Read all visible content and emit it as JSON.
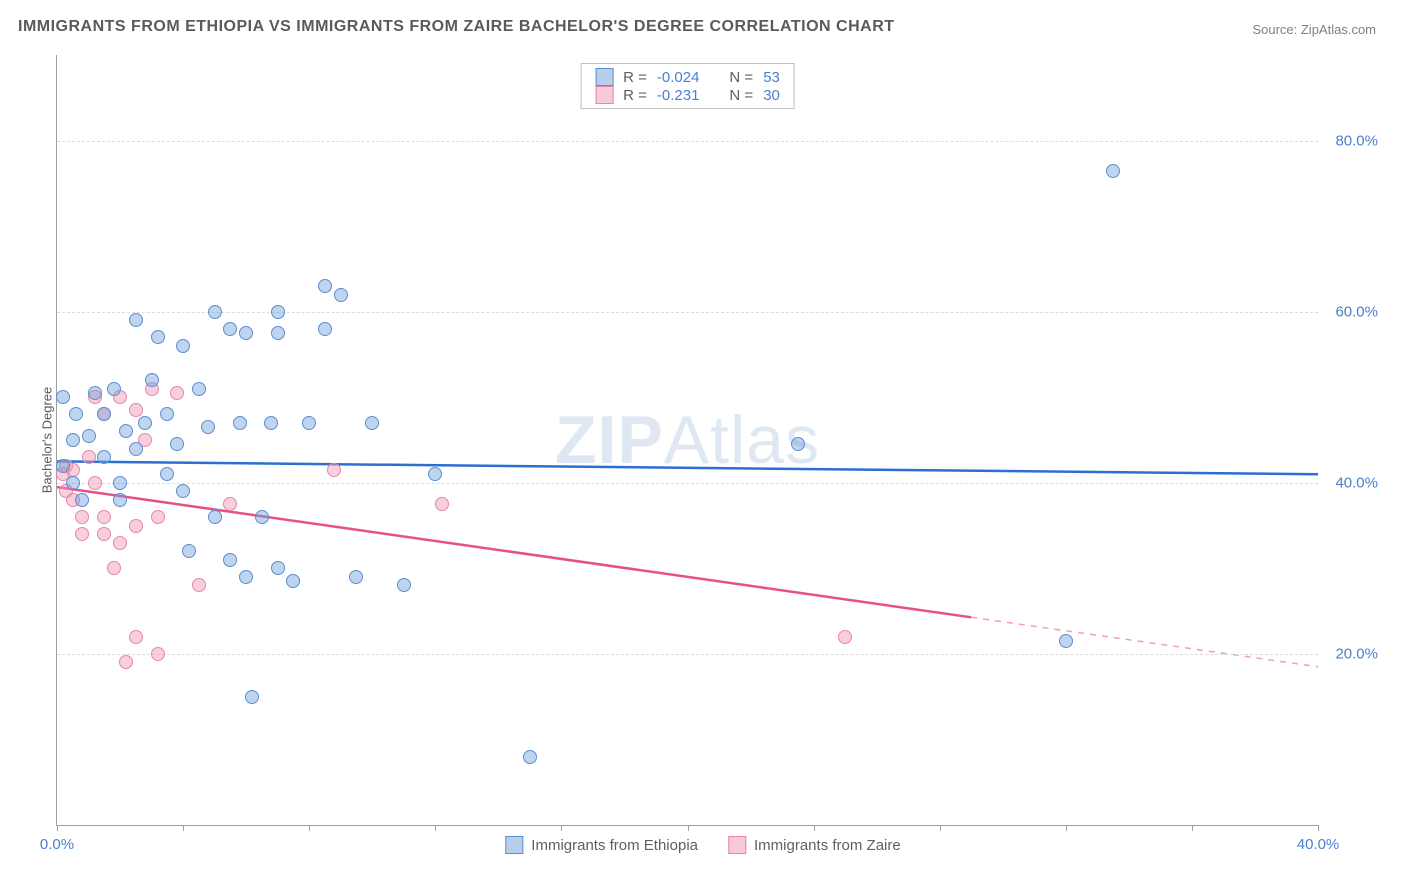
{
  "title": "IMMIGRANTS FROM ETHIOPIA VS IMMIGRANTS FROM ZAIRE BACHELOR'S DEGREE CORRELATION CHART",
  "source": "Source: ZipAtlas.com",
  "watermark_bold": "ZIP",
  "watermark_rest": "Atlas",
  "y_axis_label": "Bachelor's Degree",
  "chart": {
    "xlim": [
      0,
      40
    ],
    "ylim": [
      0,
      90
    ],
    "x_ticks": [
      0,
      4,
      8,
      12,
      16,
      20,
      24,
      28,
      32,
      36,
      40
    ],
    "x_tick_labels": {
      "0": "0.0%",
      "40": "40.0%"
    },
    "y_gridlines": [
      20,
      40,
      60,
      80
    ],
    "y_tick_labels": {
      "20": "20.0%",
      "40": "40.0%",
      "60": "60.0%",
      "80": "80.0%"
    },
    "colors": {
      "blue_fill": "rgba(113,160,218,0.45)",
      "blue_stroke": "#5b8fd0",
      "blue_line": "#2c6fd4",
      "pink_fill": "rgba(240,150,180,0.45)",
      "pink_stroke": "#e985aa",
      "pink_line": "#e5508a",
      "grid": "#dcdcdc",
      "axis": "#a0a0a0",
      "text_axis": "#4a7fd0",
      "text_main": "#5a5a5a"
    },
    "marker_radius": 7,
    "line_width": 2.5
  },
  "series_blue": {
    "name": "Immigrants from Ethiopia",
    "R": "-0.024",
    "N": "53",
    "regression": {
      "x1": 0,
      "y1": 42.5,
      "x2": 40,
      "y2": 41.0,
      "dash_from_x": null
    },
    "points": [
      [
        0.2,
        42
      ],
      [
        0.2,
        50
      ],
      [
        0.5,
        45
      ],
      [
        0.5,
        40
      ],
      [
        0.6,
        48
      ],
      [
        0.8,
        38
      ],
      [
        1.0,
        45.5
      ],
      [
        1.2,
        50.5
      ],
      [
        1.5,
        48
      ],
      [
        1.5,
        43
      ],
      [
        1.8,
        51
      ],
      [
        2.0,
        38
      ],
      [
        2.0,
        40
      ],
      [
        2.2,
        46
      ],
      [
        2.5,
        44
      ],
      [
        2.5,
        59
      ],
      [
        2.8,
        47
      ],
      [
        3.0,
        52
      ],
      [
        3.2,
        57
      ],
      [
        3.5,
        48
      ],
      [
        3.5,
        41
      ],
      [
        3.8,
        44.5
      ],
      [
        4.0,
        56
      ],
      [
        4.0,
        39
      ],
      [
        4.2,
        32
      ],
      [
        4.5,
        51
      ],
      [
        4.8,
        46.5
      ],
      [
        5.0,
        36
      ],
      [
        5.0,
        60
      ],
      [
        5.5,
        58
      ],
      [
        5.5,
        31
      ],
      [
        5.8,
        47
      ],
      [
        6.0,
        29
      ],
      [
        6.0,
        57.5
      ],
      [
        6.2,
        15
      ],
      [
        6.5,
        36
      ],
      [
        6.8,
        47
      ],
      [
        7.0,
        30
      ],
      [
        7.0,
        60
      ],
      [
        7.0,
        57.5
      ],
      [
        7.5,
        28.5
      ],
      [
        8.0,
        47
      ],
      [
        8.5,
        63
      ],
      [
        8.5,
        58
      ],
      [
        9.0,
        62
      ],
      [
        9.5,
        29
      ],
      [
        10.0,
        47
      ],
      [
        11.0,
        28
      ],
      [
        12.0,
        41
      ],
      [
        15.0,
        8
      ],
      [
        23.5,
        44.5
      ],
      [
        32.0,
        21.5
      ],
      [
        33.5,
        76.5
      ]
    ]
  },
  "series_pink": {
    "name": "Immigrants from Zaire",
    "R": "-0.231",
    "N": "30",
    "regression": {
      "x1": 0,
      "y1": 39.5,
      "x2": 40,
      "y2": 18.5,
      "dash_from_x": 29
    },
    "points": [
      [
        0.2,
        41
      ],
      [
        0.3,
        42
      ],
      [
        0.3,
        39
      ],
      [
        0.5,
        41.5
      ],
      [
        0.5,
        38
      ],
      [
        0.8,
        34
      ],
      [
        0.8,
        36
      ],
      [
        1.0,
        43
      ],
      [
        1.2,
        50
      ],
      [
        1.2,
        40
      ],
      [
        1.5,
        48
      ],
      [
        1.5,
        36
      ],
      [
        1.5,
        34
      ],
      [
        1.8,
        30
      ],
      [
        2.0,
        50
      ],
      [
        2.0,
        33
      ],
      [
        2.2,
        19
      ],
      [
        2.5,
        48.5
      ],
      [
        2.5,
        35
      ],
      [
        2.5,
        22
      ],
      [
        2.8,
        45
      ],
      [
        3.0,
        51
      ],
      [
        3.2,
        36
      ],
      [
        3.2,
        20
      ],
      [
        3.8,
        50.5
      ],
      [
        4.5,
        28
      ],
      [
        5.5,
        37.5
      ],
      [
        8.8,
        41.5
      ],
      [
        12.2,
        37.5
      ],
      [
        25.0,
        22
      ]
    ]
  },
  "top_legend": {
    "R_label": "R =",
    "N_label": "N ="
  },
  "bottom_legend": {
    "item1": "Immigrants from Ethiopia",
    "item2": "Immigrants from Zaire"
  }
}
